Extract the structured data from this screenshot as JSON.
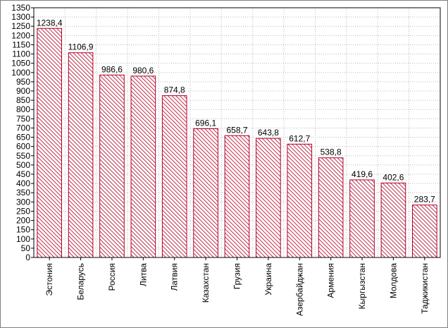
{
  "chart_data": {
    "type": "bar",
    "categories": [
      "Эстония",
      "Беларусь",
      "Россия",
      "Литва",
      "Латвия",
      "Казахстан",
      "Грузия",
      "Украина",
      "Азербайджан",
      "Армения",
      "Кыргызстан",
      "Молдова",
      "Таджикистан"
    ],
    "values": [
      1238.4,
      1106.9,
      986.6,
      980.6,
      874.8,
      696.1,
      658.7,
      643.8,
      612.7,
      538.8,
      419.6,
      402.6,
      283.7
    ],
    "data_labels": [
      "1238,4",
      "1106,9",
      "986,6",
      "980,6",
      "874,8",
      "696,1",
      "658,7",
      "643,8",
      "612,7",
      "538,8",
      "419,6",
      "402,6",
      "283,7"
    ],
    "ylim": [
      0,
      1350
    ],
    "ytick_step": 50,
    "grid": true,
    "bar_fill": "diagonal-hatch",
    "colors": {
      "bar_edge": "#b0002a",
      "hatch": "#c0304a",
      "grid": "#b8b8b8",
      "axis": "#000000"
    }
  }
}
